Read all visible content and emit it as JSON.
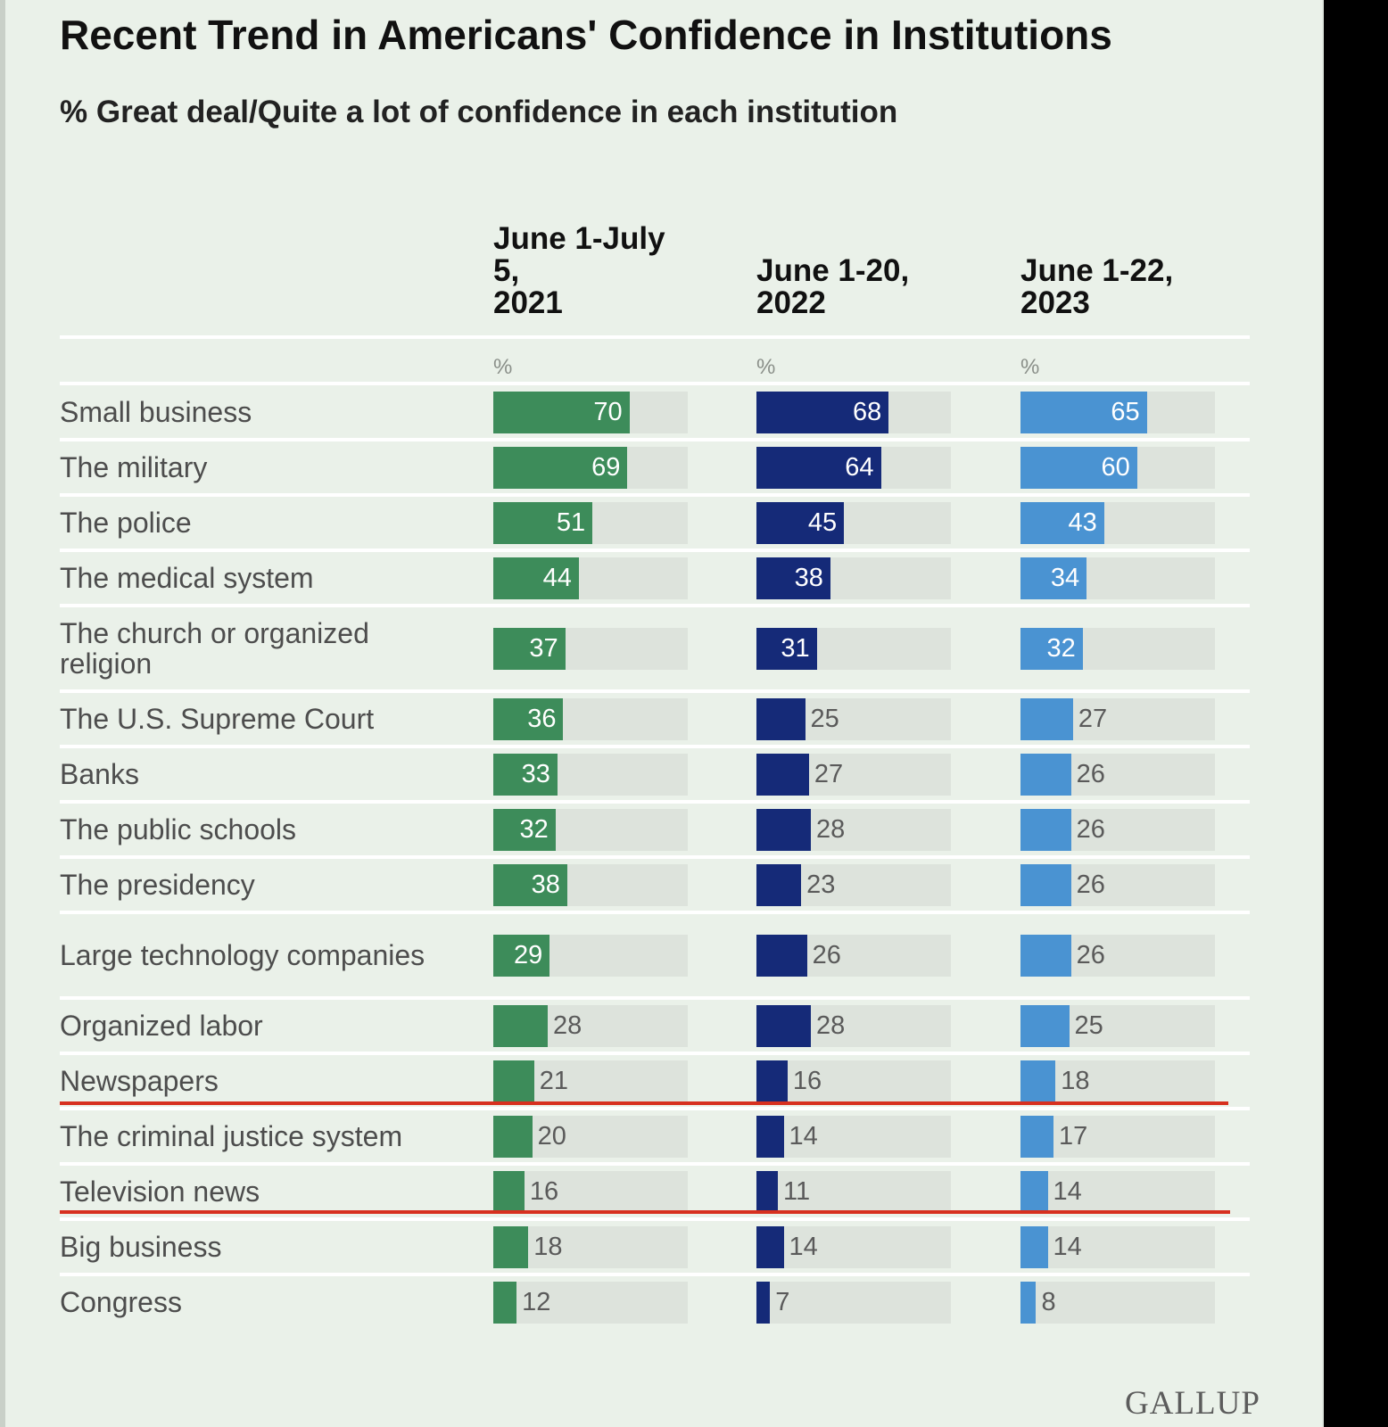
{
  "chart_data": {
    "type": "bar",
    "title": "Recent Trend in Americans' Confidence in Institutions",
    "subtitle": "% Great deal/Quite a lot of confidence in each institution",
    "unit_label": "%",
    "xlim": [
      0,
      100
    ],
    "categories": [
      "Small business",
      "The military",
      "The police",
      "The medical system",
      "The church or organized religion",
      "The U.S. Supreme Court",
      "Banks",
      "The public schools",
      "The presidency",
      "Large technology companies",
      "Organized labor",
      "Newspapers",
      "The criminal justice system",
      "Television news",
      "Big business",
      "Congress"
    ],
    "series": [
      {
        "name": "June 1-July 5,\n2021",
        "color": "#3d8c5a",
        "values": [
          70,
          69,
          51,
          44,
          37,
          36,
          33,
          32,
          38,
          29,
          28,
          21,
          20,
          16,
          18,
          12
        ]
      },
      {
        "name": "June 1-20,\n2022",
        "color": "#152a78",
        "values": [
          68,
          64,
          45,
          38,
          31,
          25,
          27,
          28,
          23,
          26,
          28,
          16,
          14,
          11,
          14,
          7
        ]
      },
      {
        "name": "June 1-22,\n2023",
        "color": "#4a93d2",
        "values": [
          65,
          60,
          43,
          34,
          32,
          27,
          26,
          26,
          26,
          26,
          25,
          18,
          17,
          14,
          14,
          8
        ]
      }
    ],
    "highlighted_rows": [
      "The criminal justice system",
      "Television news"
    ],
    "highlight_color": "#d7301f",
    "track_color": "#dde3dc",
    "background_color": "#eaf1e9"
  },
  "brand": {
    "logo_text": "GALLUP"
  }
}
